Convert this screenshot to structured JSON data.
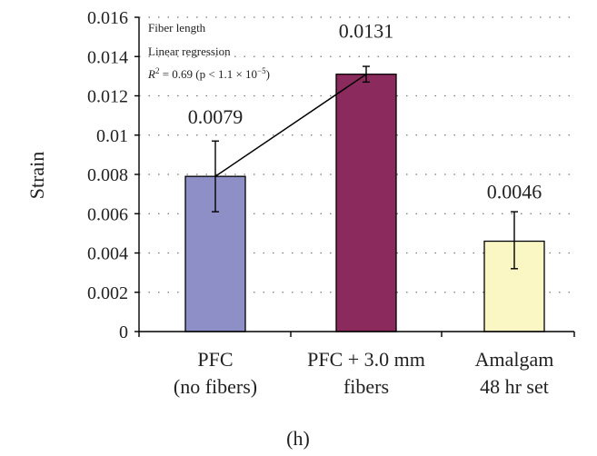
{
  "chart_data": {
    "type": "bar",
    "ylabel": "Strain",
    "ylim": [
      0,
      0.016
    ],
    "yticks": [
      "0",
      "0.002",
      "0.004",
      "0.006",
      "0.008",
      "0.01",
      "0.012",
      "0.014",
      "0.016"
    ],
    "categories": [
      [
        "PFC",
        "(no fibers)"
      ],
      [
        "PFC + 3.0 mm",
        "fibers"
      ],
      [
        "Amalgam",
        "48 hr set"
      ]
    ],
    "values": [
      0.0079,
      0.0131,
      0.0046
    ],
    "value_labels": [
      "0.0079",
      "0.0131",
      "0.0046"
    ],
    "error_low": [
      0.0061,
      0.0127,
      0.0032
    ],
    "error_high": [
      0.0097,
      0.0135,
      0.0061
    ],
    "colors": [
      "#8f8fc8",
      "#8b2a5d",
      "#fbf7c4"
    ],
    "regression_line": {
      "from": [
        0,
        0.0079
      ],
      "to": [
        1,
        0.0131
      ]
    },
    "annotation": {
      "line1": "Fiber length",
      "line2": "Linear regression",
      "line3_prefix": "R",
      "line3_sup": "2",
      "line3_mid": " = 0.69 (p < 1.1 × 10",
      "line3_exp": "−5",
      "line3_end": ")"
    },
    "grid": "dotted",
    "panel_label": "(h)"
  }
}
